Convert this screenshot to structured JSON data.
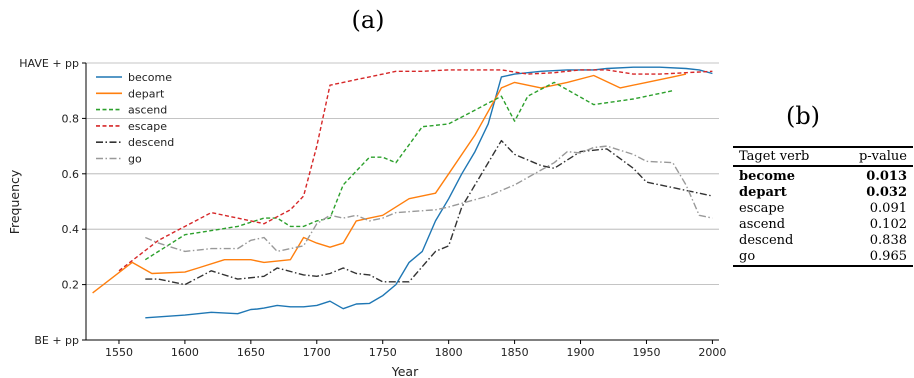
{
  "chart_data": [
    {
      "type": "line",
      "panel_label": "(a)",
      "xlabel": "Year",
      "ylabel": "Frequency",
      "xlim": [
        1525,
        2005
      ],
      "ylim": [
        0,
        1
      ],
      "xticks": [
        1550,
        1600,
        1650,
        1700,
        1750,
        1800,
        1850,
        1900,
        1950,
        2000
      ],
      "yticks": [
        {
          "value": 0,
          "label": "BE + pp"
        },
        {
          "value": 0.2,
          "label": "0.2"
        },
        {
          "value": 0.4,
          "label": "0.4"
        },
        {
          "value": 0.6,
          "label": "0.6"
        },
        {
          "value": 0.8,
          "label": "0.8"
        },
        {
          "value": 1,
          "label": "HAVE + pp"
        }
      ],
      "grid": "horizontal",
      "legend_position": "top-left",
      "series": [
        {
          "name": "become",
          "color": "#1f77b4",
          "dash": "solid",
          "points": [
            [
              1570,
              0.08
            ],
            [
              1600,
              0.09
            ],
            [
              1620,
              0.1
            ],
            [
              1640,
              0.095
            ],
            [
              1650,
              0.11
            ],
            [
              1655,
              0.112
            ],
            [
              1660,
              0.115
            ],
            [
              1670,
              0.125
            ],
            [
              1680,
              0.12
            ],
            [
              1690,
              0.12
            ],
            [
              1700,
              0.125
            ],
            [
              1710,
              0.14
            ],
            [
              1720,
              0.113
            ],
            [
              1730,
              0.13
            ],
            [
              1740,
              0.132
            ],
            [
              1750,
              0.16
            ],
            [
              1760,
              0.2
            ],
            [
              1770,
              0.28
            ],
            [
              1780,
              0.32
            ],
            [
              1790,
              0.43
            ],
            [
              1800,
              0.51
            ],
            [
              1810,
              0.6
            ],
            [
              1820,
              0.68
            ],
            [
              1830,
              0.78
            ],
            [
              1840,
              0.95
            ],
            [
              1850,
              0.96
            ],
            [
              1870,
              0.97
            ],
            [
              1890,
              0.975
            ],
            [
              1910,
              0.975
            ],
            [
              1920,
              0.98
            ],
            [
              1940,
              0.985
            ],
            [
              1960,
              0.985
            ],
            [
              1980,
              0.98
            ],
            [
              1990,
              0.975
            ],
            [
              2000,
              0.962
            ]
          ]
        },
        {
          "name": "depart",
          "color": "#ff7f0e",
          "dash": "solid",
          "points": [
            [
              1530,
              0.17
            ],
            [
              1560,
              0.28
            ],
            [
              1575,
              0.24
            ],
            [
              1600,
              0.245
            ],
            [
              1610,
              0.26
            ],
            [
              1630,
              0.29
            ],
            [
              1650,
              0.29
            ],
            [
              1660,
              0.28
            ],
            [
              1680,
              0.29
            ],
            [
              1690,
              0.37
            ],
            [
              1700,
              0.35
            ],
            [
              1710,
              0.335
            ],
            [
              1720,
              0.35
            ],
            [
              1730,
              0.43
            ],
            [
              1740,
              0.44
            ],
            [
              1750,
              0.45
            ],
            [
              1770,
              0.51
            ],
            [
              1790,
              0.53
            ],
            [
              1800,
              0.6
            ],
            [
              1820,
              0.74
            ],
            [
              1840,
              0.91
            ],
            [
              1850,
              0.93
            ],
            [
              1870,
              0.91
            ],
            [
              1890,
              0.93
            ],
            [
              1910,
              0.955
            ],
            [
              1930,
              0.91
            ],
            [
              1950,
              0.93
            ],
            [
              1970,
              0.95
            ],
            [
              1980,
              0.96
            ]
          ]
        },
        {
          "name": "ascend",
          "color": "#2ca02c",
          "dash": "dashed",
          "points": [
            [
              1570,
              0.29
            ],
            [
              1600,
              0.38
            ],
            [
              1620,
              0.395
            ],
            [
              1640,
              0.41
            ],
            [
              1660,
              0.44
            ],
            [
              1670,
              0.44
            ],
            [
              1680,
              0.41
            ],
            [
              1690,
              0.41
            ],
            [
              1700,
              0.43
            ],
            [
              1710,
              0.44
            ],
            [
              1720,
              0.56
            ],
            [
              1730,
              0.61
            ],
            [
              1740,
              0.66
            ],
            [
              1750,
              0.66
            ],
            [
              1760,
              0.64
            ],
            [
              1780,
              0.77
            ],
            [
              1800,
              0.78
            ],
            [
              1820,
              0.83
            ],
            [
              1840,
              0.88
            ],
            [
              1850,
              0.79
            ],
            [
              1860,
              0.88
            ],
            [
              1880,
              0.93
            ],
            [
              1910,
              0.85
            ],
            [
              1940,
              0.87
            ],
            [
              1970,
              0.9
            ]
          ]
        },
        {
          "name": "escape",
          "color": "#d62728",
          "dash": "dashed",
          "points": [
            [
              1550,
              0.25
            ],
            [
              1580,
              0.36
            ],
            [
              1620,
              0.46
            ],
            [
              1640,
              0.44
            ],
            [
              1660,
              0.42
            ],
            [
              1680,
              0.47
            ],
            [
              1690,
              0.52
            ],
            [
              1700,
              0.7
            ],
            [
              1710,
              0.92
            ],
            [
              1720,
              0.93
            ],
            [
              1730,
              0.94
            ],
            [
              1740,
              0.95
            ],
            [
              1760,
              0.97
            ],
            [
              1780,
              0.97
            ],
            [
              1800,
              0.975
            ],
            [
              1840,
              0.975
            ],
            [
              1860,
              0.96
            ],
            [
              1880,
              0.965
            ],
            [
              1900,
              0.975
            ],
            [
              1920,
              0.975
            ],
            [
              1940,
              0.96
            ],
            [
              1960,
              0.96
            ],
            [
              1980,
              0.965
            ],
            [
              2000,
              0.97
            ]
          ]
        },
        {
          "name": "descend",
          "color": "#333333",
          "dash": "dashdot",
          "points": [
            [
              1570,
              0.22
            ],
            [
              1580,
              0.22
            ],
            [
              1600,
              0.2
            ],
            [
              1620,
              0.25
            ],
            [
              1640,
              0.22
            ],
            [
              1660,
              0.23
            ],
            [
              1670,
              0.26
            ],
            [
              1690,
              0.235
            ],
            [
              1700,
              0.23
            ],
            [
              1710,
              0.24
            ],
            [
              1720,
              0.26
            ],
            [
              1730,
              0.24
            ],
            [
              1740,
              0.235
            ],
            [
              1750,
              0.21
            ],
            [
              1770,
              0.21
            ],
            [
              1790,
              0.32
            ],
            [
              1800,
              0.34
            ],
            [
              1810,
              0.48
            ],
            [
              1840,
              0.72
            ],
            [
              1850,
              0.67
            ],
            [
              1870,
              0.63
            ],
            [
              1880,
              0.62
            ],
            [
              1900,
              0.68
            ],
            [
              1920,
              0.69
            ],
            [
              1940,
              0.62
            ],
            [
              1950,
              0.57
            ],
            [
              1970,
              0.55
            ],
            [
              2000,
              0.52
            ]
          ]
        },
        {
          "name": "go",
          "color": "#999999",
          "dash": "dashdot",
          "points": [
            [
              1570,
              0.37
            ],
            [
              1580,
              0.35
            ],
            [
              1600,
              0.32
            ],
            [
              1620,
              0.33
            ],
            [
              1640,
              0.33
            ],
            [
              1650,
              0.36
            ],
            [
              1660,
              0.37
            ],
            [
              1670,
              0.32
            ],
            [
              1690,
              0.34
            ],
            [
              1700,
              0.42
            ],
            [
              1710,
              0.45
            ],
            [
              1720,
              0.44
            ],
            [
              1730,
              0.45
            ],
            [
              1740,
              0.43
            ],
            [
              1750,
              0.44
            ],
            [
              1760,
              0.46
            ],
            [
              1790,
              0.47
            ],
            [
              1800,
              0.48
            ],
            [
              1830,
              0.52
            ],
            [
              1850,
              0.56
            ],
            [
              1880,
              0.64
            ],
            [
              1890,
              0.68
            ],
            [
              1900,
              0.675
            ],
            [
              1910,
              0.695
            ],
            [
              1920,
              0.7
            ],
            [
              1940,
              0.67
            ],
            [
              1950,
              0.645
            ],
            [
              1970,
              0.64
            ],
            [
              1980,
              0.56
            ],
            [
              1990,
              0.45
            ],
            [
              2000,
              0.44
            ]
          ]
        }
      ]
    },
    {
      "type": "table",
      "panel_label": "(b)",
      "columns": [
        "Taget verb",
        "p-value"
      ],
      "rows": [
        {
          "verb": "become",
          "p": "0.013",
          "bold": true
        },
        {
          "verb": "depart",
          "p": "0.032",
          "bold": true
        },
        {
          "verb": "escape",
          "p": "0.091",
          "bold": false
        },
        {
          "verb": "ascend",
          "p": "0.102",
          "bold": false
        },
        {
          "verb": "descend",
          "p": "0.838",
          "bold": false
        },
        {
          "verb": "go",
          "p": "0.965",
          "bold": false
        }
      ]
    }
  ]
}
